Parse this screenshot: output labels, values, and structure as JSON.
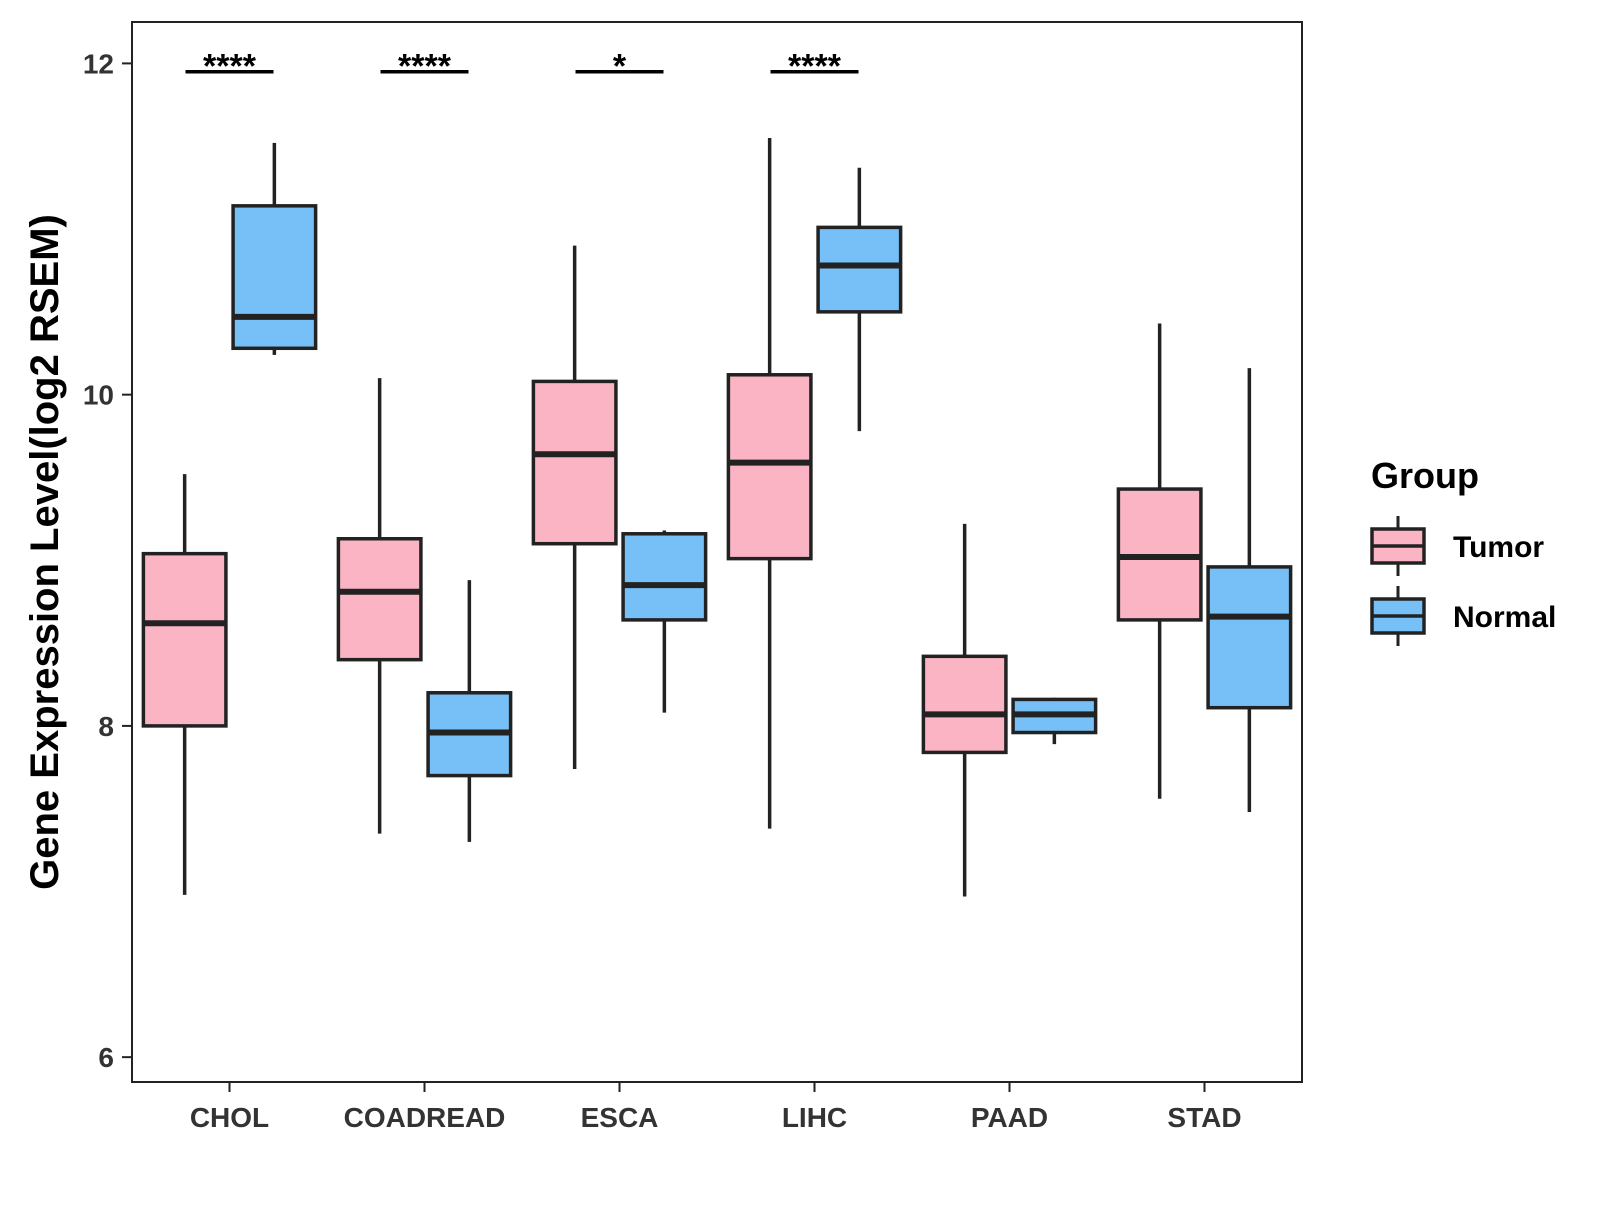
{
  "chart_data": {
    "type": "boxplot",
    "title": "",
    "xlabel": "",
    "ylabel": "Gene Expression Level(log2 RSEM)",
    "ylim": [
      5.85,
      12.25
    ],
    "yticks": [
      6,
      8,
      10,
      12
    ],
    "categories": [
      "CHOL",
      "COADREAD",
      "ESCA",
      "LIHC",
      "PAAD",
      "STAD"
    ],
    "legend": {
      "title": "Group",
      "position": "right",
      "entries": [
        "Tumor",
        "Normal"
      ]
    },
    "colors": {
      "Tumor": "#FBB4C4",
      "Normal": "#77C0F7",
      "outline": "#222222"
    },
    "series": [
      {
        "name": "Tumor",
        "boxes": [
          {
            "category": "CHOL",
            "whisker_low": 6.98,
            "q1": 8.0,
            "median": 8.62,
            "q3": 9.04,
            "whisker_high": 9.52
          },
          {
            "category": "COADREAD",
            "whisker_low": 7.35,
            "q1": 8.4,
            "median": 8.81,
            "q3": 9.13,
            "whisker_high": 10.1
          },
          {
            "category": "ESCA",
            "whisker_low": 7.74,
            "q1": 9.1,
            "median": 9.64,
            "q3": 10.08,
            "whisker_high": 10.9
          },
          {
            "category": "LIHC",
            "whisker_low": 7.38,
            "q1": 9.01,
            "median": 9.59,
            "q3": 10.12,
            "whisker_high": 11.55
          },
          {
            "category": "PAAD",
            "whisker_low": 6.97,
            "q1": 7.84,
            "median": 8.07,
            "q3": 8.42,
            "whisker_high": 9.22
          },
          {
            "category": "STAD",
            "whisker_low": 7.56,
            "q1": 8.64,
            "median": 9.02,
            "q3": 9.43,
            "whisker_high": 10.43
          }
        ]
      },
      {
        "name": "Normal",
        "boxes": [
          {
            "category": "CHOL",
            "whisker_low": 10.24,
            "q1": 10.28,
            "median": 10.47,
            "q3": 11.14,
            "whisker_high": 11.52
          },
          {
            "category": "COADREAD",
            "whisker_low": 7.3,
            "q1": 7.7,
            "median": 7.96,
            "q3": 8.2,
            "whisker_high": 8.88
          },
          {
            "category": "ESCA",
            "whisker_low": 8.08,
            "q1": 8.64,
            "median": 8.85,
            "q3": 9.16,
            "whisker_high": 9.18
          },
          {
            "category": "LIHC",
            "whisker_low": 9.78,
            "q1": 10.5,
            "median": 10.78,
            "q3": 11.01,
            "whisker_high": 11.37
          },
          {
            "category": "PAAD",
            "whisker_low": 7.89,
            "q1": 7.96,
            "median": 8.07,
            "q3": 8.16,
            "whisker_high": 8.17
          },
          {
            "category": "STAD",
            "whisker_low": 7.48,
            "q1": 8.11,
            "median": 8.66,
            "q3": 8.96,
            "whisker_high": 10.16
          }
        ]
      }
    ],
    "annotations": [
      {
        "category": "CHOL",
        "text": "****",
        "y": 11.95
      },
      {
        "category": "COADREAD",
        "text": "****",
        "y": 11.95
      },
      {
        "category": "ESCA",
        "text": "*",
        "y": 11.95
      },
      {
        "category": "LIHC",
        "text": "****",
        "y": 11.95
      }
    ]
  }
}
